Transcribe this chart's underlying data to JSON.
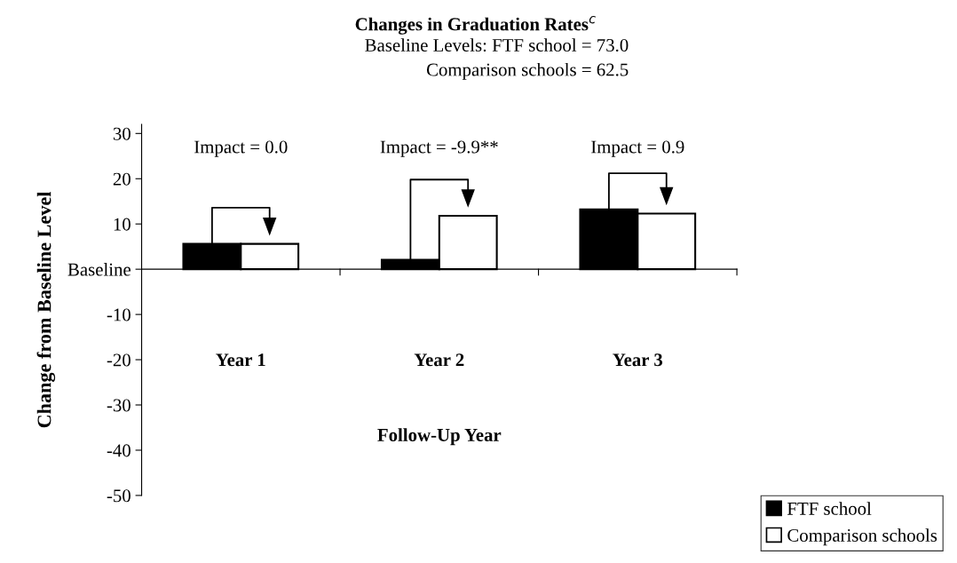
{
  "chart_data": {
    "type": "bar",
    "title": "Changes in Graduation Rates$^{c}$",
    "subtitle": "Baseline Levels: FTF school = 73.0\nComparison schools = 62.5",
    "xlabel": "Follow-Up Year",
    "ylabel": "Change from Baseline Level",
    "categories": [
      "Year 1",
      "Year 2",
      "Year 3"
    ],
    "series": [
      {
        "name": "FTF school",
        "color": "#000000",
        "values": [
          5.6,
          2.1,
          13.2
        ]
      },
      {
        "name": "Comparison schools",
        "color": "#ffffff",
        "values": [
          5.6,
          11.8,
          12.3
        ]
      }
    ],
    "ylim": [
      -50,
      32
    ],
    "yticks": [
      -50,
      -40,
      -30,
      -20,
      -10,
      {
        "value": 0,
        "label": "Baseline"
      },
      10,
      20,
      30
    ],
    "annotations": [
      "Impact = 0.0",
      "Impact = -9.9**",
      "Impact = 0.9"
    ],
    "legend": "bottom right"
  }
}
